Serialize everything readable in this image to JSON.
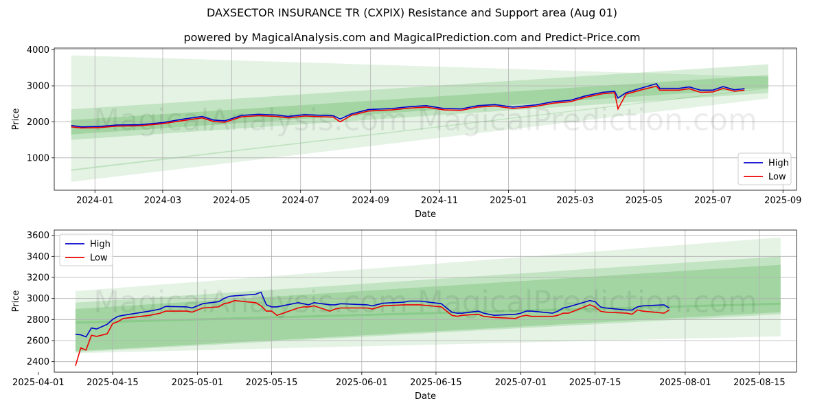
{
  "title": "DAXSECTOR INSURANCE TR (CXPIX) Resistance and Support area (Aug 01)",
  "subtitle": "powered by MagicalAnalysis.com and MagicalPrediction.com and Predict-Price.com",
  "watermark": "MagicalAnalysis.com   MagicalPrediction.com",
  "colors": {
    "high": "#0000cc",
    "low": "#ee0000",
    "band": "#2ca02c"
  },
  "chart_data": [
    {
      "type": "line",
      "xlabel": "Date",
      "ylabel": "Price",
      "xlim": [
        "2023-11-26",
        "2025-09-13"
      ],
      "ylim": [
        100,
        4050
      ],
      "x_ticks": [
        "2024-01",
        "2024-03",
        "2024-05",
        "2024-07",
        "2024-09",
        "2024-11",
        "2025-01",
        "2025-03",
        "2025-05",
        "2025-07",
        "2025-09"
      ],
      "y_ticks": [
        1000,
        2000,
        3000,
        4000
      ],
      "grid": true,
      "legend": "lower right",
      "bands": [
        {
          "x": [
            "2023-12-11",
            "2025-08-19"
          ],
          "upper": [
            3850,
            3250
          ],
          "lower": [
            330,
            2650
          ]
        },
        {
          "x": [
            "2023-12-11",
            "2025-08-19"
          ],
          "upper": [
            2350,
            3600
          ],
          "lower": [
            1500,
            2800
          ]
        },
        {
          "x": [
            "2023-12-11",
            "2025-08-19"
          ],
          "upper": [
            2050,
            3300
          ],
          "lower": [
            1650,
            2950
          ]
        },
        {
          "x": [
            "2023-12-11",
            "2025-08-19"
          ],
          "upper": [
            680,
            2950
          ],
          "lower": [
            640,
            2930
          ]
        }
      ],
      "series": [
        {
          "name": "High",
          "x": [
            "2023-12-11",
            "2023-12-20",
            "2024-01-05",
            "2024-01-20",
            "2024-02-10",
            "2024-03-01",
            "2024-03-20",
            "2024-04-05",
            "2024-04-15",
            "2024-04-25",
            "2024-05-10",
            "2024-05-25",
            "2024-06-10",
            "2024-06-20",
            "2024-07-05",
            "2024-07-20",
            "2024-07-30",
            "2024-08-05",
            "2024-08-15",
            "2024-08-30",
            "2024-09-20",
            "2024-10-05",
            "2024-10-20",
            "2024-11-05",
            "2024-11-20",
            "2024-12-05",
            "2024-12-20",
            "2025-01-05",
            "2025-01-25",
            "2025-02-10",
            "2025-02-25",
            "2025-03-10",
            "2025-03-25",
            "2025-04-05",
            "2025-04-08",
            "2025-04-15",
            "2025-04-30",
            "2025-05-12",
            "2025-05-15",
            "2025-06-01",
            "2025-06-10",
            "2025-06-20",
            "2025-07-01",
            "2025-07-10",
            "2025-07-20",
            "2025-07-29"
          ],
          "y": [
            1900,
            1860,
            1870,
            1910,
            1920,
            1980,
            2080,
            2150,
            2050,
            2030,
            2180,
            2210,
            2190,
            2150,
            2200,
            2180,
            2170,
            2080,
            2220,
            2340,
            2370,
            2420,
            2450,
            2370,
            2360,
            2450,
            2480,
            2410,
            2470,
            2560,
            2600,
            2720,
            2820,
            2850,
            2660,
            2810,
            2950,
            3060,
            2930,
            2930,
            2970,
            2880,
            2880,
            2980,
            2890,
            2920
          ]
        },
        {
          "name": "Low",
          "x": [
            "2023-12-11",
            "2023-12-20",
            "2024-01-05",
            "2024-01-20",
            "2024-02-10",
            "2024-03-01",
            "2024-03-20",
            "2024-04-05",
            "2024-04-15",
            "2024-04-25",
            "2024-05-10",
            "2024-05-25",
            "2024-06-10",
            "2024-06-20",
            "2024-07-05",
            "2024-07-20",
            "2024-07-30",
            "2024-08-05",
            "2024-08-15",
            "2024-08-30",
            "2024-09-20",
            "2024-10-05",
            "2024-10-20",
            "2024-11-05",
            "2024-11-20",
            "2024-12-05",
            "2024-12-20",
            "2025-01-05",
            "2025-01-25",
            "2025-02-10",
            "2025-02-25",
            "2025-03-10",
            "2025-03-25",
            "2025-04-05",
            "2025-04-08",
            "2025-04-15",
            "2025-04-30",
            "2025-05-12",
            "2025-05-15",
            "2025-06-01",
            "2025-06-10",
            "2025-06-20",
            "2025-07-01",
            "2025-07-10",
            "2025-07-20",
            "2025-07-29"
          ],
          "y": [
            1860,
            1830,
            1840,
            1880,
            1890,
            1950,
            2040,
            2110,
            2010,
            1990,
            2140,
            2170,
            2150,
            2110,
            2160,
            2140,
            2130,
            2000,
            2180,
            2300,
            2330,
            2380,
            2410,
            2330,
            2320,
            2410,
            2440,
            2370,
            2430,
            2520,
            2560,
            2680,
            2780,
            2810,
            2360,
            2770,
            2900,
            2990,
            2880,
            2880,
            2920,
            2820,
            2830,
            2930,
            2850,
            2880
          ]
        }
      ]
    },
    {
      "type": "line",
      "xlabel": "Date",
      "ylabel": "Price",
      "xlim": [
        "2025-04-04",
        "2025-08-22"
      ],
      "ylim": [
        2300,
        3650
      ],
      "x_ticks": [
        "2025-04-01",
        "2025-04-15",
        "2025-05-01",
        "2025-05-15",
        "2025-06-01",
        "2025-06-15",
        "2025-07-01",
        "2025-07-15",
        "2025-08-01",
        "2025-08-15"
      ],
      "y_ticks": [
        2400,
        2600,
        2800,
        3000,
        3200,
        3400,
        3600
      ],
      "grid": true,
      "legend": "upper left",
      "bands": [
        {
          "x": [
            "2025-04-08",
            "2025-08-19"
          ],
          "upper": [
            3070,
            3580
          ],
          "lower": [
            2480,
            2640
          ]
        },
        {
          "x": [
            "2025-04-08",
            "2025-08-19"
          ],
          "upper": [
            2960,
            3400
          ],
          "lower": [
            2490,
            2850
          ]
        },
        {
          "x": [
            "2025-04-08",
            "2025-08-19"
          ],
          "upper": [
            2900,
            3320
          ],
          "lower": [
            2500,
            2870
          ]
        },
        {
          "x": [
            "2025-04-08",
            "2025-08-19"
          ],
          "upper": [
            2780,
            2960
          ],
          "lower": [
            2760,
            2940
          ]
        }
      ],
      "series": [
        {
          "name": "High",
          "x": [
            "2025-04-08",
            "2025-04-09",
            "2025-04-10",
            "2025-04-11",
            "2025-04-12",
            "2025-04-14",
            "2025-04-15",
            "2025-04-16",
            "2025-04-17",
            "2025-04-22",
            "2025-04-24",
            "2025-04-25",
            "2025-04-29",
            "2025-04-30",
            "2025-05-02",
            "2025-05-05",
            "2025-05-06",
            "2025-05-07",
            "2025-05-08",
            "2025-05-12",
            "2025-05-13",
            "2025-05-14",
            "2025-05-15",
            "2025-05-16",
            "2025-05-20",
            "2025-05-21",
            "2025-05-22",
            "2025-05-23",
            "2025-05-26",
            "2025-05-27",
            "2025-05-28",
            "2025-06-02",
            "2025-06-03",
            "2025-06-05",
            "2025-06-09",
            "2025-06-10",
            "2025-06-11",
            "2025-06-12",
            "2025-06-16",
            "2025-06-17",
            "2025-06-18",
            "2025-06-19",
            "2025-06-20",
            "2025-06-23",
            "2025-06-24",
            "2025-06-26",
            "2025-06-30",
            "2025-07-01",
            "2025-07-02",
            "2025-07-03",
            "2025-07-07",
            "2025-07-08",
            "2025-07-09",
            "2025-07-10",
            "2025-07-14",
            "2025-07-15",
            "2025-07-16",
            "2025-07-17",
            "2025-07-21",
            "2025-07-22",
            "2025-07-23",
            "2025-07-24",
            "2025-07-28",
            "2025-07-29"
          ],
          "y": [
            2660,
            2655,
            2635,
            2720,
            2710,
            2755,
            2800,
            2830,
            2840,
            2880,
            2900,
            2925,
            2920,
            2910,
            2950,
            2970,
            3000,
            3020,
            3025,
            3040,
            3060,
            2940,
            2920,
            2920,
            2960,
            2950,
            2940,
            2960,
            2940,
            2940,
            2950,
            2940,
            2930,
            2955,
            2965,
            2975,
            2975,
            2975,
            2950,
            2910,
            2870,
            2860,
            2860,
            2880,
            2860,
            2840,
            2850,
            2860,
            2880,
            2880,
            2860,
            2880,
            2910,
            2920,
            2980,
            2970,
            2920,
            2910,
            2890,
            2890,
            2920,
            2930,
            2940,
            2910
          ]
        },
        {
          "name": "Low",
          "x": [
            "2025-04-08",
            "2025-04-09",
            "2025-04-10",
            "2025-04-11",
            "2025-04-12",
            "2025-04-14",
            "2025-04-15",
            "2025-04-16",
            "2025-04-17",
            "2025-04-22",
            "2025-04-24",
            "2025-04-25",
            "2025-04-29",
            "2025-04-30",
            "2025-05-02",
            "2025-05-05",
            "2025-05-06",
            "2025-05-07",
            "2025-05-08",
            "2025-05-12",
            "2025-05-13",
            "2025-05-14",
            "2025-05-15",
            "2025-05-16",
            "2025-05-20",
            "2025-05-21",
            "2025-05-22",
            "2025-05-23",
            "2025-05-26",
            "2025-05-27",
            "2025-05-28",
            "2025-06-02",
            "2025-06-03",
            "2025-06-05",
            "2025-06-09",
            "2025-06-10",
            "2025-06-11",
            "2025-06-12",
            "2025-06-16",
            "2025-06-17",
            "2025-06-18",
            "2025-06-19",
            "2025-06-20",
            "2025-06-23",
            "2025-06-24",
            "2025-06-26",
            "2025-06-30",
            "2025-07-01",
            "2025-07-02",
            "2025-07-03",
            "2025-07-07",
            "2025-07-08",
            "2025-07-09",
            "2025-07-10",
            "2025-07-14",
            "2025-07-15",
            "2025-07-16",
            "2025-07-17",
            "2025-07-21",
            "2025-07-22",
            "2025-07-23",
            "2025-07-24",
            "2025-07-28",
            "2025-07-29"
          ],
          "y": [
            2360,
            2530,
            2510,
            2650,
            2640,
            2665,
            2760,
            2780,
            2810,
            2840,
            2860,
            2880,
            2880,
            2870,
            2910,
            2920,
            2950,
            2960,
            2980,
            2960,
            2930,
            2880,
            2880,
            2840,
            2910,
            2920,
            2920,
            2930,
            2880,
            2900,
            2910,
            2910,
            2900,
            2930,
            2940,
            2940,
            2940,
            2940,
            2920,
            2880,
            2840,
            2830,
            2840,
            2850,
            2830,
            2820,
            2810,
            2830,
            2840,
            2830,
            2830,
            2840,
            2860,
            2860,
            2940,
            2920,
            2880,
            2870,
            2860,
            2850,
            2890,
            2880,
            2860,
            2890
          ]
        }
      ]
    }
  ]
}
